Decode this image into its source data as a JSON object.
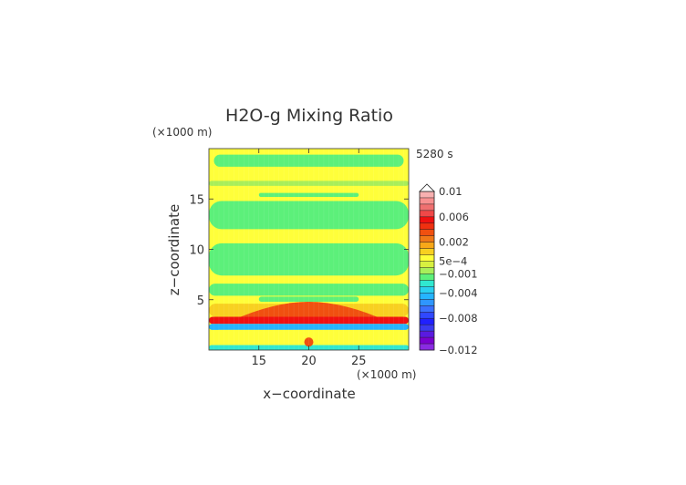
{
  "chart_data": {
    "type": "heatmap",
    "title": "H2O-g Mixing Ratio",
    "xlabel": "x−coordinate",
    "ylabel": "z−coordinate",
    "x_unit": "(×1000 m)",
    "y_unit": "(×1000 m)",
    "time_label": "5280 s",
    "xlim": [
      10,
      30
    ],
    "ylim": [
      0,
      20
    ],
    "x_ticks": [
      15,
      20,
      25
    ],
    "y_ticks": [
      5,
      10,
      15
    ],
    "grid": false,
    "legend": "right",
    "colorbar": {
      "levels": [
        {
          "value": -0.012,
          "color": "#8a2be2"
        },
        {
          "value": -0.011,
          "color": "#7a00d0"
        },
        {
          "value": -0.01,
          "color": "#5a1ae0"
        },
        {
          "value": -0.009,
          "color": "#3a3af0"
        },
        {
          "value": -0.008,
          "color": "#2020ff"
        },
        {
          "value": -0.007,
          "color": "#3048ff"
        },
        {
          "value": -0.006,
          "color": "#3a70ff"
        },
        {
          "value": -0.005,
          "color": "#2f96ff"
        },
        {
          "value": -0.004,
          "color": "#25b4ff"
        },
        {
          "value": -0.003,
          "color": "#2ad0f0"
        },
        {
          "value": -0.002,
          "color": "#30e8d0"
        },
        {
          "value": -0.001,
          "color": "#5cf07a"
        },
        {
          "value": 0.0,
          "color": "#a8ee5a"
        },
        {
          "value": 0.0005,
          "color": "#d8f040"
        },
        {
          "value": 0.001,
          "color": "#ffff3a"
        },
        {
          "value": 0.0015,
          "color": "#f8d020"
        },
        {
          "value": 0.002,
          "color": "#f8a818"
        },
        {
          "value": 0.003,
          "color": "#f07818"
        },
        {
          "value": 0.004,
          "color": "#f05010"
        },
        {
          "value": 0.005,
          "color": "#f03010"
        },
        {
          "value": 0.006,
          "color": "#f01010"
        },
        {
          "value": 0.007,
          "color": "#f04848"
        },
        {
          "value": 0.008,
          "color": "#f07070"
        },
        {
          "value": 0.009,
          "color": "#f89090"
        },
        {
          "value": 0.01,
          "color": "#f8b0b0"
        }
      ],
      "tick_labels": [
        "0.01",
        "0.006",
        "0.002",
        "5e−4",
        "−0.001",
        "−0.004",
        "−0.008",
        "−0.012"
      ],
      "tick_values": [
        0.01,
        0.006,
        0.002,
        0.0005,
        -0.001,
        -0.004,
        -0.008,
        -0.012
      ],
      "extend": "max"
    },
    "regions": [
      {
        "kind": "band",
        "z_range": [
          0,
          20
        ],
        "value": 0.001,
        "desc": "background"
      },
      {
        "kind": "band",
        "z_range": [
          18.2,
          19.4
        ],
        "x_range": [
          10.5,
          29.5
        ],
        "value": -0.0005
      },
      {
        "kind": "band",
        "z_range": [
          16.3,
          16.8
        ],
        "x_range": [
          10,
          30
        ],
        "value": 0.0
      },
      {
        "kind": "band",
        "z_range": [
          15.2,
          15.6
        ],
        "x_range": [
          15,
          25
        ],
        "value": -0.0005
      },
      {
        "kind": "band",
        "z_range": [
          12.0,
          14.8
        ],
        "x_range": [
          10,
          30
        ],
        "value": -0.0005
      },
      {
        "kind": "band",
        "z_range": [
          7.4,
          10.6
        ],
        "x_range": [
          10,
          30
        ],
        "value": -0.0005
      },
      {
        "kind": "band",
        "z_range": [
          5.4,
          6.6
        ],
        "x_range": [
          10,
          30
        ],
        "value": -0.0005
      },
      {
        "kind": "band",
        "z_range": [
          4.8,
          5.3
        ],
        "x_range": [
          15,
          25
        ],
        "value": -0.0005
      },
      {
        "kind": "band",
        "z_range": [
          3.3,
          4.6
        ],
        "x_range": [
          10,
          30
        ],
        "value": 0.0015
      },
      {
        "kind": "dome",
        "z_range": [
          2.8,
          4.8
        ],
        "x_range": [
          12,
          28
        ],
        "value": 0.004
      },
      {
        "kind": "band",
        "z_range": [
          2.6,
          3.3
        ],
        "x_range": [
          10,
          30
        ],
        "value": 0.006
      },
      {
        "kind": "band",
        "z_range": [
          2.0,
          2.6
        ],
        "x_range": [
          10,
          30
        ],
        "value": -0.004
      },
      {
        "kind": "band",
        "z_range": [
          0,
          2.0
        ],
        "x_range": [
          10,
          30
        ],
        "value": 0.001
      },
      {
        "kind": "band",
        "z_range": [
          0,
          0.5
        ],
        "x_range": [
          10,
          30
        ],
        "value": -0.002
      },
      {
        "kind": "spot",
        "x": 20,
        "z": 0.8,
        "value": 0.004
      }
    ]
  }
}
